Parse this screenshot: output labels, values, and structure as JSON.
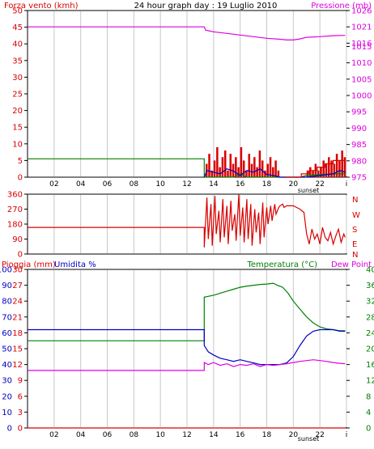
{
  "chart_data": [
    {
      "type": "line",
      "title": "24 hour graph day : 19 Luglio 2010",
      "ylabel": "Forza vento (kmh)",
      "y2label": "Pressione (mb)",
      "x_ticks": [
        "02",
        "04",
        "06",
        "08",
        "10",
        "12",
        "14",
        "16",
        "18",
        "20",
        "22",
        "i"
      ],
      "x_annotation": "sunset",
      "xlim": [
        0,
        24
      ],
      "ylim": [
        0,
        50
      ],
      "y_ticks": [
        0,
        5,
        10,
        15,
        20,
        25,
        30,
        35,
        40,
        45,
        50
      ],
      "y2lim": [
        975,
        1026
      ],
      "y2_ticks": [
        975,
        980,
        985,
        990,
        995,
        1000,
        1005,
        1010,
        1015,
        1016,
        1021,
        1026
      ],
      "colors": {
        "wind": "#d80000",
        "gust": "#d80000",
        "pressure": "#e000e0",
        "avg": "#008000",
        "dir": "#0000c0",
        "grid": "#c8c8c8"
      },
      "series": [
        {
          "key": "pressure",
          "axis": "y2",
          "x": [
            0,
            13.3,
            13.4,
            14,
            15,
            16,
            17,
            18,
            19,
            19.5,
            20,
            20.5,
            21,
            22,
            23,
            23.9
          ],
          "values": [
            1021,
            1021,
            1020,
            1019.5,
            1019,
            1018.5,
            1018,
            1017.5,
            1017.2,
            1017,
            1017,
            1017.3,
            1017.8,
            1018,
            1018.3,
            1018.4
          ]
        },
        {
          "key": "avg",
          "axis": "y",
          "x": [
            0,
            13.3,
            13.3,
            15.5,
            16,
            16.5,
            17,
            20.5,
            21,
            23,
            23.9
          ],
          "values": [
            5.5,
            5.5,
            0,
            0,
            1,
            0,
            0,
            0,
            0.5,
            1,
            1
          ]
        },
        {
          "key": "dir",
          "axis": "y",
          "x": [
            13.3,
            13.5,
            14,
            14.5,
            15,
            15.5,
            16,
            16.5,
            17,
            17.5,
            18,
            18.5,
            19,
            20,
            21,
            22,
            23,
            23.5,
            23.9
          ],
          "values": [
            0,
            2,
            1.5,
            1,
            2.5,
            1.8,
            0.5,
            2,
            1.5,
            2.5,
            0.8,
            0.5,
            0,
            0,
            0,
            0.5,
            1,
            2,
            1.5
          ]
        }
      ],
      "wind_bars": {
        "x": [
          13.4,
          13.6,
          13.8,
          14.0,
          14.2,
          14.4,
          14.6,
          14.8,
          15.0,
          15.2,
          15.4,
          15.6,
          15.8,
          16.0,
          16.2,
          16.4,
          16.6,
          16.8,
          17.0,
          17.2,
          17.4,
          17.6,
          17.8,
          18.0,
          18.2,
          18.4,
          18.6,
          18.8,
          21.0,
          21.2,
          21.4,
          21.6,
          21.8,
          22.0,
          22.2,
          22.4,
          22.6,
          22.8,
          23.0,
          23.2,
          23.4,
          23.6,
          23.8
        ],
        "values": [
          4,
          7,
          2,
          5,
          9,
          3,
          6,
          8,
          2,
          7,
          4,
          6,
          3,
          9,
          5,
          2,
          7,
          4,
          6,
          3,
          8,
          5,
          2,
          4,
          6,
          3,
          5,
          2,
          2,
          3,
          2,
          4,
          2,
          3,
          5,
          4,
          6,
          5,
          4,
          7,
          5,
          8,
          6
        ]
      },
      "gust_line": {
        "x": [
          19.4,
          19.4,
          20.6,
          20.6,
          21.2,
          21.2,
          21.8,
          21.8,
          22.4,
          22.4,
          23.0,
          23.0,
          23.9
        ],
        "values": [
          0,
          0,
          0,
          1,
          1,
          2,
          2,
          3,
          3,
          4,
          4,
          5,
          5
        ]
      }
    },
    {
      "type": "line",
      "ylabel_right": [
        "N",
        "W",
        "S",
        "E",
        "N"
      ],
      "xlim": [
        0,
        24
      ],
      "ylim": [
        0,
        360
      ],
      "y_ticks": [
        0,
        90,
        180,
        270,
        360
      ],
      "color": "#d80000",
      "series": [
        {
          "x": [
            0,
            13.3,
            13.3,
            13.5,
            13.6,
            13.8,
            13.9,
            14.1,
            14.2,
            14.4,
            14.5,
            14.7,
            14.8,
            15.0,
            15.1,
            15.3,
            15.4,
            15.6,
            15.7,
            15.9,
            16.0,
            16.2,
            16.3,
            16.5,
            16.6,
            16.8,
            16.9,
            17.1,
            17.2,
            17.4,
            17.5,
            17.7,
            17.8,
            18.0,
            18.1,
            18.3,
            18.4,
            18.6,
            18.7,
            18.9,
            19.0,
            19.2,
            19.3,
            19.5,
            20.0,
            20.5,
            20.8,
            21.0,
            21.2,
            21.4,
            21.6,
            21.8,
            22.0,
            22.2,
            22.4,
            22.6,
            22.8,
            23.0,
            23.2,
            23.4,
            23.6,
            23.8,
            23.9
          ],
          "values": [
            160,
            160,
            40,
            340,
            90,
            300,
            50,
            350,
            120,
            260,
            70,
            330,
            100,
            290,
            60,
            320,
            140,
            240,
            80,
            360,
            110,
            280,
            70,
            330,
            90,
            300,
            50,
            270,
            130,
            250,
            60,
            310,
            100,
            280,
            180,
            290,
            200,
            300,
            240,
            280,
            290,
            300,
            280,
            290,
            290,
            270,
            250,
            120,
            60,
            150,
            90,
            120,
            60,
            160,
            100,
            80,
            130,
            60,
            110,
            150,
            70,
            120,
            100
          ]
        }
      ]
    },
    {
      "type": "line",
      "ylabel": "Pioggia (mm)",
      "ylabel2": "Umidita %",
      "y2label": "Temperatura (°C)",
      "y2label_extra": "Dew Point",
      "x_ticks": [
        "02",
        "04",
        "06",
        "08",
        "10",
        "12",
        "14",
        "16",
        "18",
        "20",
        "22",
        "i"
      ],
      "x_annotation": "sunset",
      "xlim": [
        0,
        24
      ],
      "rain_lim": [
        0,
        30
      ],
      "rain_ticks": [
        0,
        3,
        6,
        9,
        12,
        15,
        18,
        21,
        24,
        27,
        30
      ],
      "hum_ticks": [
        0,
        10,
        20,
        30,
        40,
        50,
        60,
        70,
        80,
        90,
        100
      ],
      "temp_lim": [
        0,
        40
      ],
      "temp_ticks": [
        0,
        4,
        8,
        12,
        16,
        20,
        24,
        28,
        32,
        36,
        40
      ],
      "colors": {
        "rain": "#d80000",
        "humidity": "#0000c0",
        "temperature": "#008000",
        "dewpoint": "#e000e0"
      },
      "series": [
        {
          "key": "temperature",
          "axis": "temp",
          "x": [
            0,
            13.3,
            13.3,
            13.6,
            14,
            14.5,
            15,
            15.5,
            16,
            16.5,
            17,
            17.5,
            18,
            18.5,
            18.8,
            19.2,
            19.6,
            20,
            20.5,
            21,
            21.5,
            22,
            22.5,
            23,
            23.5,
            23.9
          ],
          "values": [
            22,
            22,
            33,
            33.2,
            33.5,
            34,
            34.5,
            35,
            35.5,
            35.8,
            36,
            36.2,
            36.3,
            36.5,
            36,
            35.5,
            34,
            32,
            30,
            28,
            26.5,
            25.5,
            25,
            24.8,
            24.5,
            24.5
          ]
        },
        {
          "key": "humidity",
          "axis": "hum",
          "x": [
            0,
            13.3,
            13.3,
            13.6,
            14,
            14.5,
            15,
            15.5,
            16,
            16.5,
            17,
            17.5,
            18,
            18.5,
            19,
            19.5,
            20,
            20.5,
            21,
            21.5,
            22,
            22.5,
            23,
            23.5,
            23.9
          ],
          "values": [
            62,
            62,
            52,
            48,
            46,
            44,
            43,
            42,
            43,
            42,
            41,
            40,
            40,
            40,
            40,
            41,
            45,
            52,
            58,
            61,
            62,
            62,
            62,
            61,
            61
          ]
        },
        {
          "key": "dewpoint",
          "axis": "temp",
          "x": [
            0,
            13.3,
            13.3,
            13.6,
            14,
            14.5,
            15,
            15.5,
            16,
            16.5,
            17,
            17.5,
            18,
            18.5,
            19,
            19.5,
            20,
            20.5,
            21,
            21.5,
            22,
            22.5,
            23,
            23.5,
            23.9
          ],
          "values": [
            14.5,
            14.5,
            16.5,
            16,
            16.5,
            15.8,
            16.2,
            15.5,
            16,
            15.8,
            16.2,
            15.5,
            16,
            15.8,
            16,
            16.2,
            16.5,
            16.8,
            17,
            17.2,
            17,
            16.8,
            16.5,
            16.3,
            16.2
          ]
        },
        {
          "key": "rain",
          "axis": "rain",
          "x": [
            0,
            23.9
          ],
          "values": [
            0,
            0
          ]
        }
      ]
    }
  ]
}
